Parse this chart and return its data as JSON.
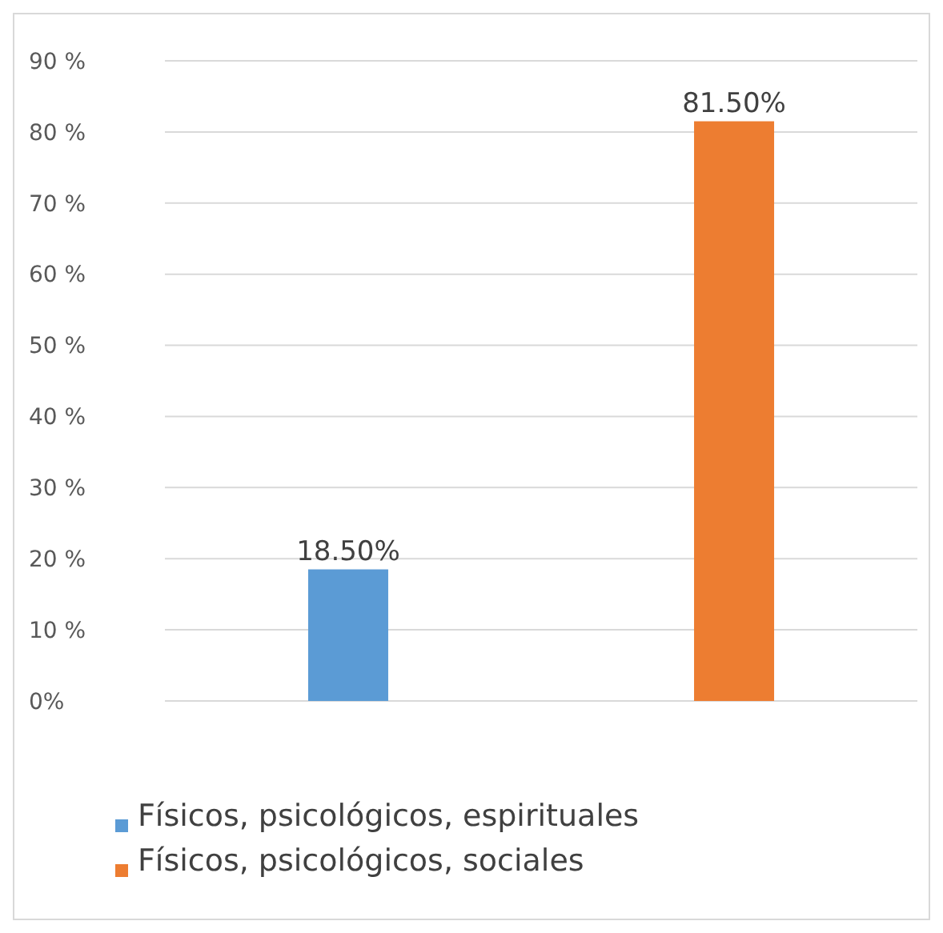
{
  "chart_data": {
    "type": "bar",
    "categories": [
      null,
      null
    ],
    "series": [
      {
        "name": "Físicos, psicológicos, espirituales",
        "color": "#5b9bd5",
        "values": [
          18.5,
          null
        ],
        "value_labels": [
          "18.50%",
          null
        ]
      },
      {
        "name": "Físicos, psicológicos, sociales",
        "color": "#ed7d31",
        "values": [
          null,
          81.5
        ],
        "value_labels": [
          null,
          "81.50%"
        ]
      }
    ],
    "ylim": [
      0,
      90
    ],
    "yticks": [
      {
        "value": 0,
        "label": "0%"
      },
      {
        "value": 10,
        "label": "10 %"
      },
      {
        "value": 20,
        "label": "20 %"
      },
      {
        "value": 30,
        "label": "30 %"
      },
      {
        "value": 40,
        "label": "40 %"
      },
      {
        "value": 50,
        "label": "50 %"
      },
      {
        "value": 60,
        "label": "60 %"
      },
      {
        "value": 70,
        "label": "70 %"
      },
      {
        "value": 80,
        "label": "80 %"
      },
      {
        "value": 90,
        "label": "90 %"
      }
    ],
    "grid": "y",
    "legend": "bottom"
  }
}
